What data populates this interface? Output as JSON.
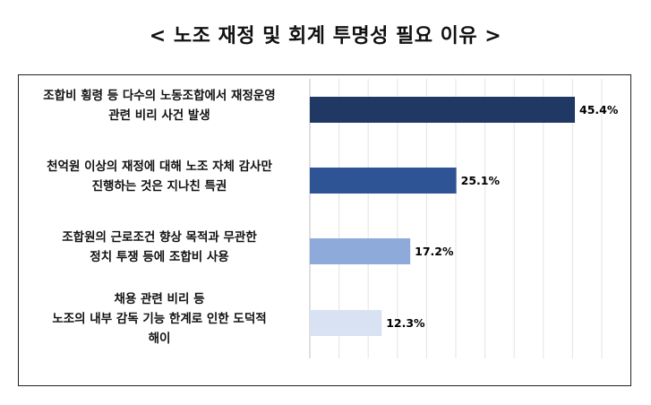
{
  "title": "< 노조 재정 및 회계 투명성 필요 이유 >",
  "chart_data": {
    "type": "bar",
    "orientation": "horizontal",
    "title": "< 노조 재정 및 회계 투명성 필요 이유 >",
    "categories": [
      "조합비 횡령 등 다수의 노동조합에서 재정운영\n관련 비리 사건 발생",
      "천억원 이상의 재정에 대해 노조 자체 감사만\n진행하는 것은 지나친 특권",
      "조합원의 근로조건 향상 목적과 무관한\n정치 투쟁 등에 조합비 사용",
      "채용 관련 비리 등\n노조의 내부 감독 기능 한계로 인한 도덕적\n해이"
    ],
    "values": [
      45.4,
      25.1,
      17.2,
      12.3
    ],
    "value_labels": [
      "45.4%",
      "25.1%",
      "17.2%",
      "12.3%"
    ],
    "bar_colors": [
      "#1f3864",
      "#2f5496",
      "#8eaadb",
      "#d9e2f3"
    ],
    "xlim": [
      0,
      50
    ],
    "grid": "vertical, light gray",
    "legend": "none"
  }
}
